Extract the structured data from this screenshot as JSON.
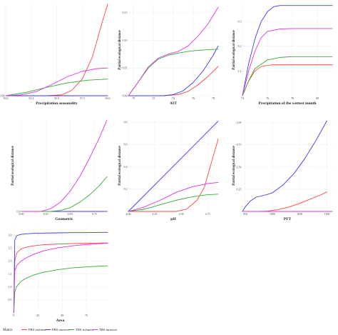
{
  "series_styles": [
    {
      "name": "PBS richness",
      "color": "#ff4444"
    },
    {
      "name": "PBS turnover",
      "color": "#3a3af0"
    },
    {
      "name": "TBS richness",
      "color": "#33aa33"
    },
    {
      "name": "TBS turnover",
      "color": "#dd33dd"
    }
  ],
  "legend": {
    "title": "Matrix",
    "placement": "bottom"
  },
  "chart_data": [
    {
      "type": "line",
      "xlabel": "Precipitation seasonality",
      "ylabel": "Partial ecological distance",
      "xticks": [
        "50.0",
        "52.5",
        "55.0",
        "57.5",
        "60.0"
      ],
      "yticks": [
        "0.00"
      ],
      "xlim": [
        50.0,
        60.0
      ],
      "ylim": [
        0,
        0.33
      ],
      "series": [
        {
          "name": "PBS richness",
          "x": [
            50,
            52,
            54,
            55.5,
            56.5,
            57.5,
            58.5,
            59.5,
            60
          ],
          "y": [
            0,
            0,
            0,
            0.003,
            0.02,
            0.06,
            0.14,
            0.27,
            0.33
          ]
        },
        {
          "name": "PBS turnover",
          "x": [
            50,
            60
          ],
          "y": [
            0,
            0
          ]
        },
        {
          "name": "TBS richness",
          "x": [
            50,
            52,
            54,
            56,
            58,
            60
          ],
          "y": [
            0,
            0.012,
            0.03,
            0.046,
            0.056,
            0.06
          ]
        },
        {
          "name": "TBS turnover",
          "x": [
            50,
            51.5,
            53,
            54.5,
            56,
            57.5,
            59,
            60
          ],
          "y": [
            0,
            0.003,
            0.015,
            0.04,
            0.068,
            0.088,
            0.098,
            0.1
          ]
        }
      ]
    },
    {
      "type": "line",
      "xlabel": "AIT",
      "ylabel": "Partial ecological distance",
      "xticks": [
        "70",
        "72",
        "74",
        "76",
        "78"
      ],
      "yticks": [
        "0.00",
        "0.05",
        "0.10",
        "0.15"
      ],
      "xlim": [
        69.5,
        78.5
      ],
      "ylim": [
        0,
        0.165
      ],
      "series": [
        {
          "name": "PBS richness",
          "x": [
            69.5,
            73,
            74.5,
            75.5,
            76.5,
            77.5,
            78.5
          ],
          "y": [
            0,
            0,
            0.002,
            0.008,
            0.02,
            0.035,
            0.053
          ]
        },
        {
          "name": "PBS turnover",
          "x": [
            69.5,
            73,
            74,
            75,
            76,
            77,
            78,
            78.5
          ],
          "y": [
            0,
            0,
            0.002,
            0.009,
            0.024,
            0.045,
            0.073,
            0.09
          ]
        },
        {
          "name": "TBS richness",
          "x": [
            69.5,
            70.5,
            71.5,
            72.5,
            73.5,
            74.5,
            75.5,
            76.5,
            77.5,
            78.5
          ],
          "y": [
            0,
            0.025,
            0.05,
            0.066,
            0.073,
            0.077,
            0.08,
            0.082,
            0.083,
            0.084
          ]
        },
        {
          "name": "TBS turnover",
          "x": [
            69.5,
            70.5,
            71.5,
            72.5,
            73.5,
            74.5,
            75.5,
            76.5,
            77.5,
            78.5
          ],
          "y": [
            0,
            0.025,
            0.052,
            0.068,
            0.075,
            0.08,
            0.09,
            0.108,
            0.13,
            0.16
          ]
        }
      ]
    },
    {
      "type": "line",
      "xlabel": "Precipitation of the wettest month",
      "ylabel": "Partial ecological distance",
      "xticks": [
        "74",
        "76",
        "78",
        "80"
      ],
      "yticks": [
        "0.1",
        "0.2",
        "0.3"
      ],
      "xlim": [
        74,
        81.2
      ],
      "ylim": [
        0,
        0.37
      ],
      "series": [
        {
          "name": "PBS richness",
          "x": [
            74,
            74.5,
            75,
            75.5,
            76,
            76.5,
            77,
            81.2
          ],
          "y": [
            0,
            0.06,
            0.1,
            0.118,
            0.123,
            0.125,
            0.125,
            0.125
          ]
        },
        {
          "name": "PBS turnover",
          "x": [
            74,
            74.5,
            75,
            75.5,
            76,
            76.5,
            77,
            77.5,
            81.2
          ],
          "y": [
            0,
            0.13,
            0.23,
            0.3,
            0.34,
            0.36,
            0.365,
            0.365,
            0.365
          ]
        },
        {
          "name": "TBS richness",
          "x": [
            74,
            74.5,
            75,
            76,
            77,
            78,
            81.2
          ],
          "y": [
            0,
            0.06,
            0.11,
            0.145,
            0.155,
            0.158,
            0.158
          ]
        },
        {
          "name": "TBS turnover",
          "x": [
            74,
            74.5,
            75,
            75.5,
            76,
            77,
            78,
            81.2
          ],
          "y": [
            0,
            0.1,
            0.18,
            0.235,
            0.26,
            0.27,
            0.272,
            0.272
          ]
        }
      ]
    },
    {
      "type": "line",
      "xlabel": "Geometric",
      "ylabel": "Partial ecological distance",
      "xticks": [
        "0.00",
        "0.25",
        "0.50",
        "0.75"
      ],
      "yticks": [
        "0.0"
      ],
      "xlim": [
        0,
        0.88
      ],
      "ylim": [
        0,
        1
      ],
      "series": [
        {
          "name": "PBS richness",
          "x": [
            0,
            0.88
          ],
          "y": [
            0,
            0
          ]
        },
        {
          "name": "PBS turnover",
          "x": [
            0,
            0.88
          ],
          "y": [
            0,
            0
          ]
        },
        {
          "name": "TBS richness",
          "x": [
            0,
            0.3,
            0.4,
            0.5,
            0.6,
            0.7,
            0.8,
            0.88
          ],
          "y": [
            0,
            0,
            0.01,
            0.04,
            0.1,
            0.18,
            0.28,
            0.38
          ]
        },
        {
          "name": "TBS turnover",
          "x": [
            0,
            0.2,
            0.3,
            0.4,
            0.5,
            0.6,
            0.7,
            0.8,
            0.88
          ],
          "y": [
            0,
            0,
            0.03,
            0.1,
            0.22,
            0.38,
            0.58,
            0.8,
            1.0
          ]
        }
      ]
    },
    {
      "type": "line",
      "xlabel": "pH",
      "ylabel": "Partial ecological distance",
      "xticks": [
        "4.00",
        "4.25",
        "4.50",
        "4.75"
      ],
      "yticks": [
        "0.2",
        "0.4",
        "0.6",
        "0.8"
      ],
      "xlim": [
        4.0,
        4.85
      ],
      "ylim": [
        0,
        0.82
      ],
      "series": [
        {
          "name": "PBS richness",
          "x": [
            4.0,
            4.45,
            4.55,
            4.65,
            4.72,
            4.78,
            4.85
          ],
          "y": [
            0,
            0,
            0.02,
            0.1,
            0.22,
            0.42,
            0.65
          ]
        },
        {
          "name": "PBS turnover",
          "x": [
            4.0,
            4.85
          ],
          "y": [
            0,
            0.81
          ]
        },
        {
          "name": "TBS richness",
          "x": [
            4.0,
            4.15,
            4.3,
            4.45,
            4.6,
            4.75,
            4.85
          ],
          "y": [
            0,
            0.02,
            0.06,
            0.1,
            0.13,
            0.15,
            0.155
          ]
        },
        {
          "name": "TBS turnover",
          "x": [
            4.0,
            4.15,
            4.3,
            4.45,
            4.6,
            4.75,
            4.85
          ],
          "y": [
            0,
            0.04,
            0.1,
            0.17,
            0.22,
            0.25,
            0.26
          ]
        }
      ]
    },
    {
      "type": "line",
      "xlabel": "PFT",
      "ylabel": "Partial ecological distance",
      "xticks": [
        "950",
        "1000",
        "1050",
        "1100"
      ],
      "yticks": [
        "0.25",
        "0.50",
        "0.75",
        "1.00"
      ],
      "xlim": [
        945,
        1110
      ],
      "ylim": [
        0,
        1.03
      ],
      "series": [
        {
          "name": "PBS richness",
          "x": [
            945,
            975,
            990,
            1010,
            1030,
            1050,
            1070,
            1090,
            1100
          ],
          "y": [
            0,
            0,
            0.003,
            0.02,
            0.05,
            0.09,
            0.14,
            0.19,
            0.22
          ]
        },
        {
          "name": "PBS turnover",
          "x": [
            945,
            950,
            960,
            970,
            980,
            990,
            1000,
            1020,
            1040,
            1060,
            1080,
            1100
          ],
          "y": [
            0,
            0.05,
            0.12,
            0.16,
            0.175,
            0.19,
            0.21,
            0.3,
            0.43,
            0.6,
            0.8,
            1.02
          ]
        },
        {
          "name": "TBS richness",
          "x": [
            945,
            1110
          ],
          "y": [
            0,
            0
          ]
        },
        {
          "name": "TBS turnover",
          "x": [
            945,
            1110
          ],
          "y": [
            0,
            0
          ]
        }
      ]
    },
    {
      "type": "line",
      "xlabel": "Area",
      "ylabel": "",
      "xticks": [
        "0",
        "25",
        "50",
        "75"
      ],
      "yticks": [
        "0.5",
        "1.0",
        "1.5",
        "2.0",
        "2.5",
        "3.0"
      ],
      "xlim": [
        -1,
        97
      ],
      "ylim": [
        0,
        3.3
      ],
      "series": [
        {
          "name": "PBS richness",
          "x": [
            0,
            1,
            3,
            7,
            12,
            20,
            30,
            45,
            60,
            75,
            90,
            97
          ],
          "y": [
            0,
            2.0,
            2.3,
            2.45,
            2.52,
            2.58,
            2.62,
            2.65,
            2.67,
            2.68,
            2.69,
            2.69
          ]
        },
        {
          "name": "PBS turnover",
          "x": [
            0,
            1,
            3,
            7,
            12,
            20,
            30,
            45,
            60,
            75,
            90,
            97
          ],
          "y": [
            0,
            2.8,
            2.97,
            3.02,
            3.04,
            3.06,
            3.07,
            3.08,
            3.09,
            3.09,
            3.1,
            3.1
          ]
        },
        {
          "name": "TBS richness",
          "x": [
            0,
            1,
            3,
            7,
            12,
            20,
            30,
            45,
            60,
            75,
            90,
            97
          ],
          "y": [
            0,
            0.8,
            1.02,
            1.2,
            1.32,
            1.45,
            1.56,
            1.66,
            1.73,
            1.77,
            1.8,
            1.81
          ]
        },
        {
          "name": "TBS turnover",
          "x": [
            0,
            1,
            3,
            7,
            12,
            20,
            30,
            45,
            60,
            75,
            90,
            97
          ],
          "y": [
            0,
            1.6,
            1.82,
            1.98,
            2.1,
            2.25,
            2.38,
            2.5,
            2.58,
            2.63,
            2.67,
            2.68
          ]
        }
      ]
    }
  ]
}
